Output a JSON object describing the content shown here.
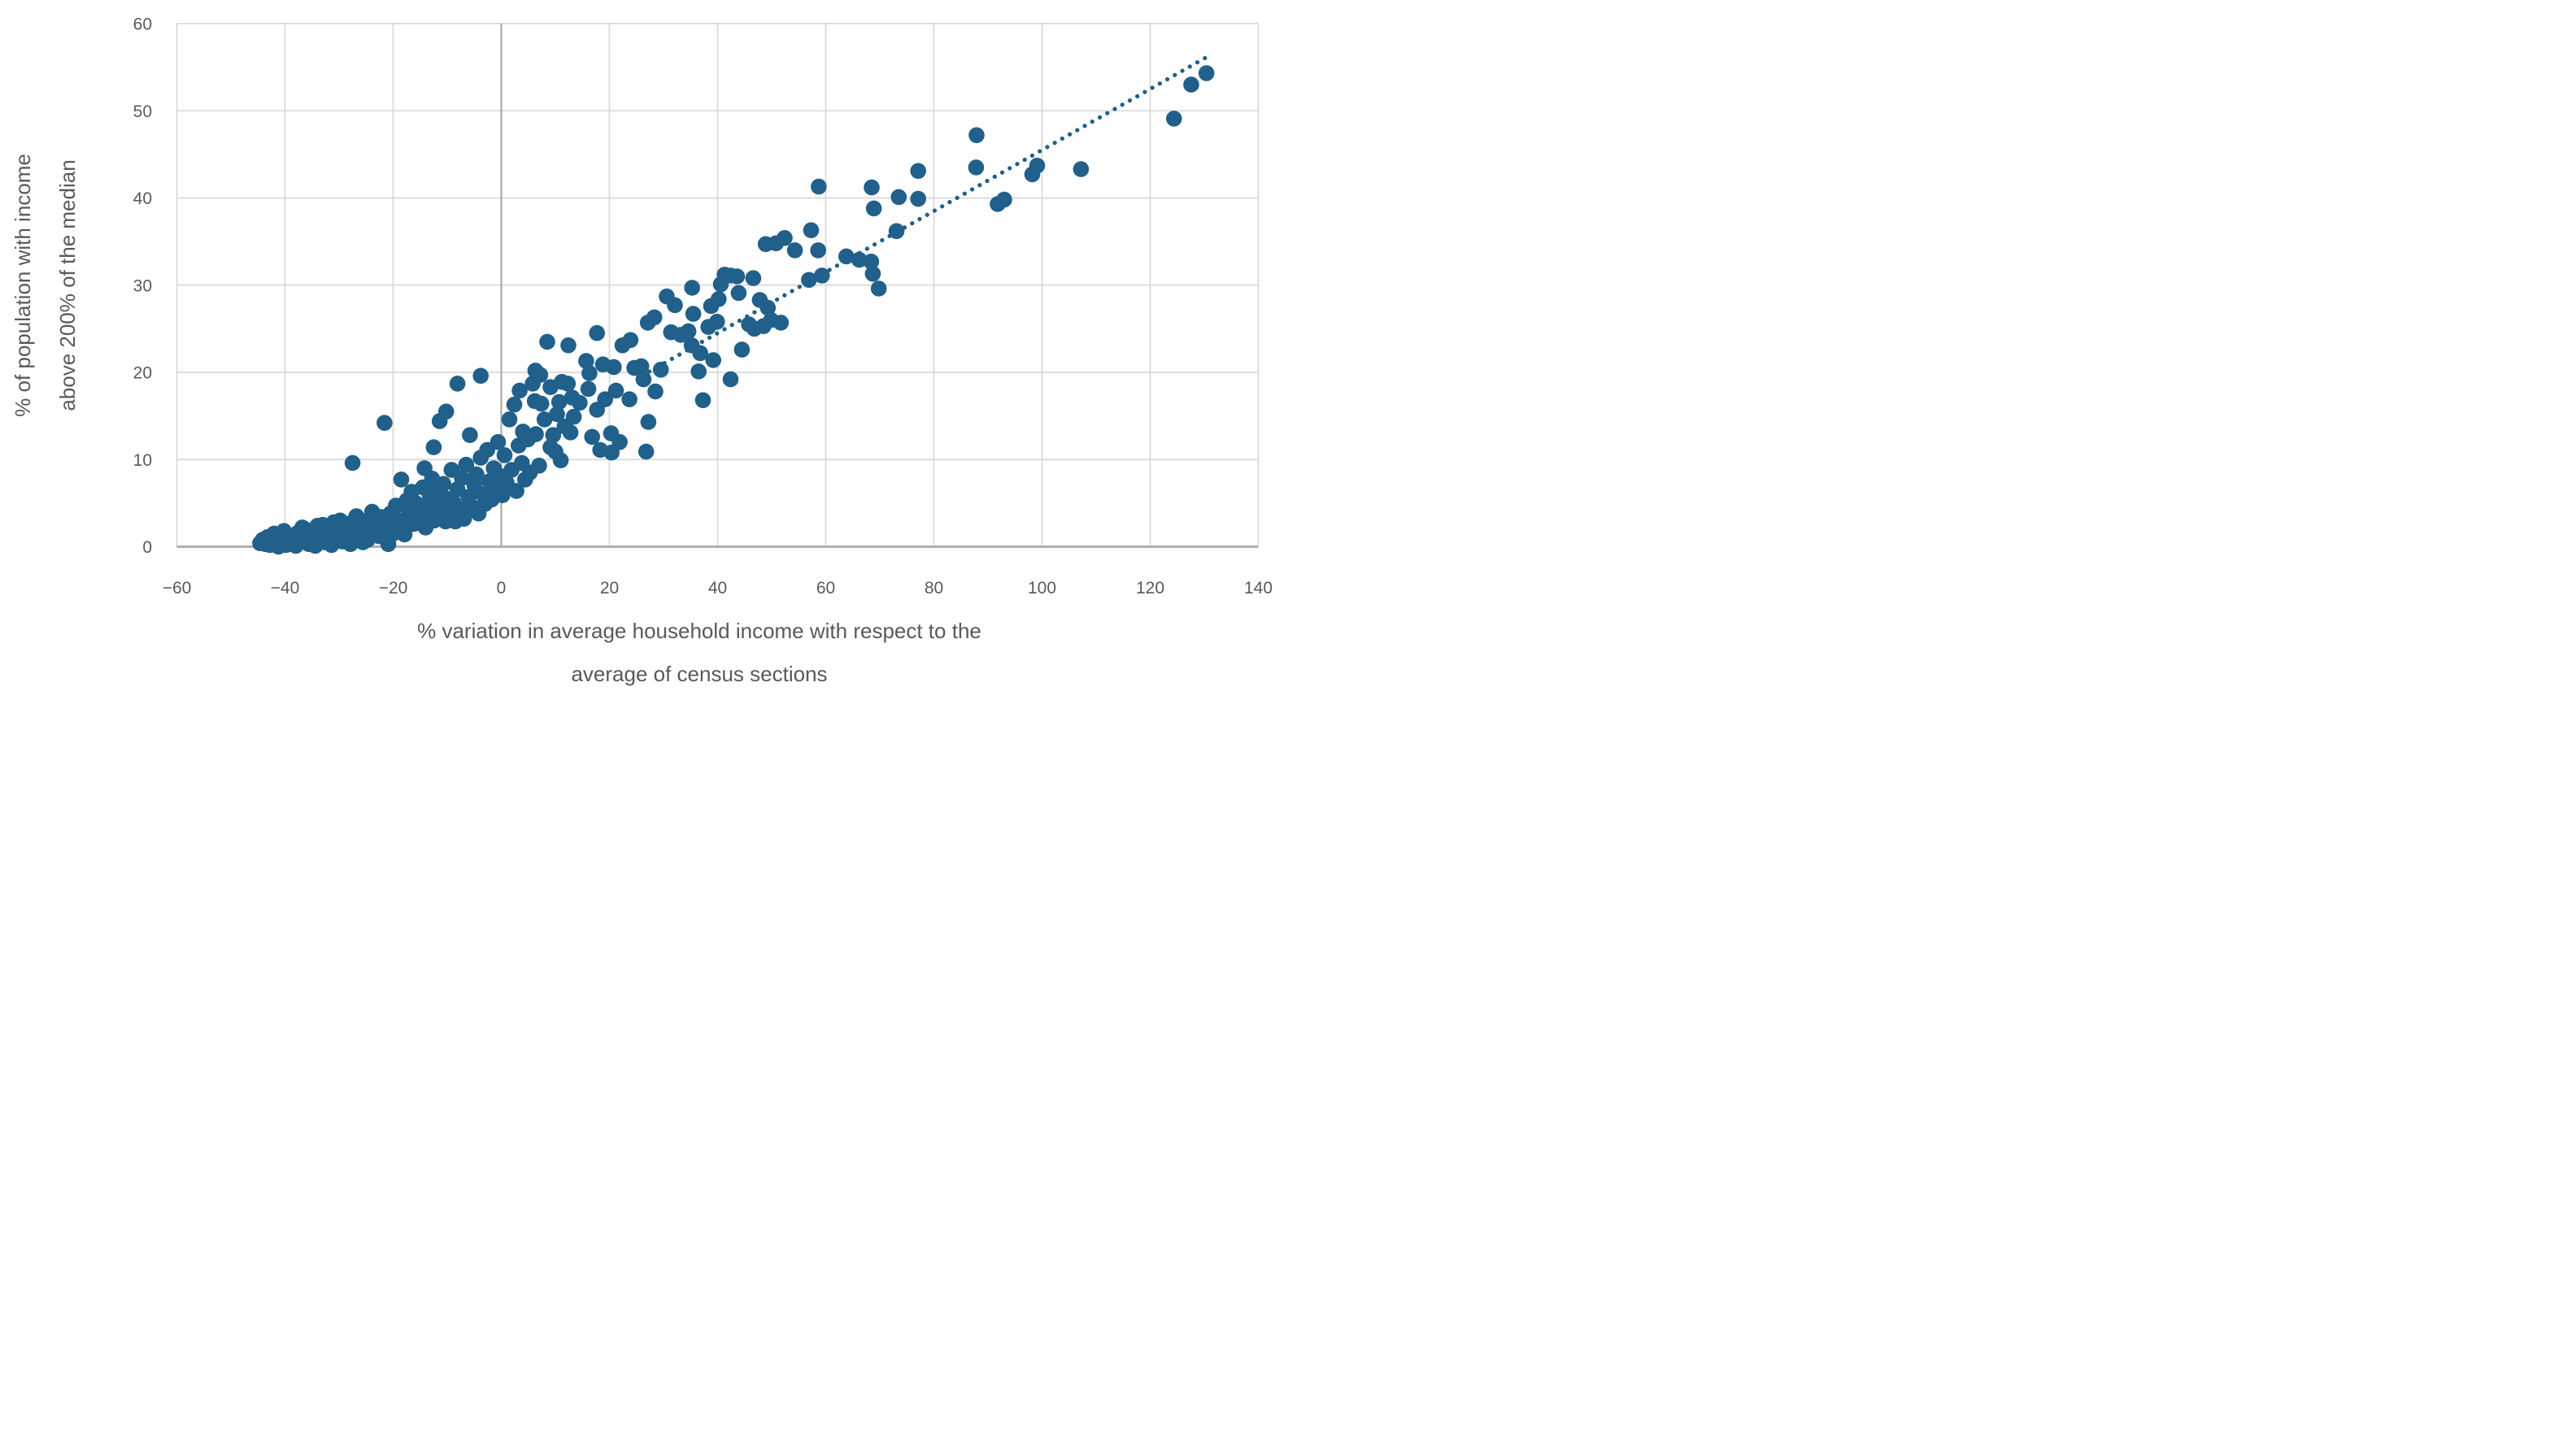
{
  "chart_data": {
    "type": "scatter",
    "title": "",
    "xlabel": "% variation in average household income with respect to the average of census sections",
    "xlabel_line1": "% variation in average household income with respect to the",
    "xlabel_line2": "average of census sections",
    "ylabel": "% of population with income above 200% of the median",
    "ylabel_line1": "% of population with income",
    "ylabel_line2": "above 200% of the median",
    "xlim": [
      -60,
      140
    ],
    "ylim": [
      0,
      60
    ],
    "grid": true,
    "legend": "none",
    "point_color": "#20608a",
    "grid_color": "#d9d9d9",
    "axis_color": "#b0b0b0",
    "label_color": "#595959",
    "x_ticks": [
      {
        "v": -60,
        "label": "−60"
      },
      {
        "v": -40,
        "label": "−40"
      },
      {
        "v": -20,
        "label": "−20"
      },
      {
        "v": 0,
        "label": "0"
      },
      {
        "v": 20,
        "label": "20"
      },
      {
        "v": 40,
        "label": "40"
      },
      {
        "v": 60,
        "label": "60"
      },
      {
        "v": 80,
        "label": "80"
      },
      {
        "v": 100,
        "label": "100"
      },
      {
        "v": 120,
        "label": "120"
      },
      {
        "v": 140,
        "label": "140"
      }
    ],
    "y_ticks": [
      {
        "v": 0,
        "label": "0"
      },
      {
        "v": 10,
        "label": "10"
      },
      {
        "v": 20,
        "label": "20"
      },
      {
        "v": 30,
        "label": "30"
      },
      {
        "v": 40,
        "label": "40"
      },
      {
        "v": 50,
        "label": "50"
      },
      {
        "v": 60,
        "label": "60"
      }
    ],
    "trendline": {
      "style": "dotted",
      "x1": 26,
      "y1": 19.6,
      "x2": 130.3,
      "y2": 56.1
    },
    "points": [
      [
        -44.6,
        0.4
      ],
      [
        -44.1,
        0.8
      ],
      [
        -43.6,
        0.3
      ],
      [
        -43.2,
        1.1
      ],
      [
        -42.8,
        0.2
      ],
      [
        -42.3,
        0.7
      ],
      [
        -42.0,
        1.5
      ],
      [
        -41.6,
        0.3
      ],
      [
        -41.2,
        0.0
      ],
      [
        -40.9,
        1.0
      ],
      [
        -40.5,
        0.5
      ],
      [
        -40.2,
        1.8
      ],
      [
        -39.8,
        0.2
      ],
      [
        -39.4,
        0.9
      ],
      [
        -39.0,
        1.3
      ],
      [
        -38.7,
        1.2
      ],
      [
        -38.3,
        0.4
      ],
      [
        -38.0,
        0.1
      ],
      [
        -37.6,
        1.6
      ],
      [
        -37.2,
        0.7
      ],
      [
        -36.8,
        2.2
      ],
      [
        -36.3,
        2.0
      ],
      [
        -36.0,
        0.9
      ],
      [
        -35.6,
        0.3
      ],
      [
        -35.2,
        1.0
      ],
      [
        -34.8,
        1.7
      ],
      [
        -34.4,
        0.1
      ],
      [
        -34.0,
        2.4
      ],
      [
        -33.6,
        1.1
      ],
      [
        -33.0,
        2.5
      ],
      [
        -32.6,
        0.5
      ],
      [
        -32.2,
        1.9
      ],
      [
        -31.8,
        0.8
      ],
      [
        -31.4,
        0.2
      ],
      [
        -31.0,
        2.8
      ],
      [
        -30.6,
        1.4
      ],
      [
        -30.2,
        2.2
      ],
      [
        -29.8,
        3.0
      ],
      [
        -29.4,
        0.6
      ],
      [
        -29.0,
        1.3
      ],
      [
        -28.6,
        2.6
      ],
      [
        -28.2,
        0.9
      ],
      [
        -27.9,
        0.3
      ],
      [
        -27.5,
        1.8
      ],
      [
        -27.0,
        3.2
      ],
      [
        -26.8,
        3.5
      ],
      [
        -26.4,
        1.0
      ],
      [
        -26.0,
        2.1
      ],
      [
        -25.6,
        0.5
      ],
      [
        -25.2,
        2.9
      ],
      [
        -24.7,
        0.8
      ],
      [
        -24.3,
        1.6
      ],
      [
        -23.9,
        4.0
      ],
      [
        -23.5,
        2.4
      ],
      [
        -23.0,
        2.8
      ],
      [
        -22.6,
        1.2
      ],
      [
        -22.2,
        3.4
      ],
      [
        -21.7,
        1.7
      ],
      [
        -21.3,
        2.3
      ],
      [
        -20.9,
        0.3
      ],
      [
        -20.5,
        3.8
      ],
      [
        -20.0,
        1.5
      ],
      [
        -27.5,
        9.6
      ],
      [
        -21.6,
        14.2
      ],
      [
        -19.5,
        4.7
      ],
      [
        -19.1,
        2.1
      ],
      [
        -18.7,
        3.0
      ],
      [
        -18.5,
        7.7
      ],
      [
        -18.2,
        1.9
      ],
      [
        -17.9,
        1.4
      ],
      [
        -17.5,
        5.3
      ],
      [
        -17.1,
        3.8
      ],
      [
        -16.6,
        6.3
      ],
      [
        -16.2,
        2.6
      ],
      [
        -15.8,
        5.0
      ],
      [
        -15.4,
        3.2
      ],
      [
        -14.9,
        3.5
      ],
      [
        -14.5,
        6.8
      ],
      [
        -14.2,
        9.0
      ],
      [
        -14.0,
        2.2
      ],
      [
        -13.6,
        4.4
      ],
      [
        -13.2,
        5.8
      ],
      [
        -12.8,
        7.8
      ],
      [
        -12.5,
        11.4
      ],
      [
        -12.4,
        3.0
      ],
      [
        -12.0,
        6.3
      ],
      [
        -11.6,
        4.1
      ],
      [
        -11.4,
        14.4
      ],
      [
        -11.1,
        4.7
      ],
      [
        -10.7,
        7.2
      ],
      [
        -10.3,
        2.9
      ],
      [
        -10.2,
        15.5
      ],
      [
        -10.0,
        5.5
      ],
      [
        -9.6,
        3.5
      ],
      [
        -9.2,
        8.8
      ],
      [
        -8.9,
        5.1
      ],
      [
        -8.5,
        2.9
      ],
      [
        -8.1,
        18.7
      ],
      [
        -8.1,
        6.6
      ],
      [
        -7.7,
        4.3
      ],
      [
        -7.3,
        7.9
      ],
      [
        -6.9,
        3.2
      ],
      [
        -6.5,
        9.4
      ],
      [
        -6.1,
        5.7
      ],
      [
        -5.8,
        12.8
      ],
      [
        -5.4,
        4.6
      ],
      [
        -5.0,
        7.1
      ],
      [
        -4.6,
        8.3
      ],
      [
        -4.2,
        3.8
      ],
      [
        -3.8,
        19.6
      ],
      [
        -3.8,
        10.2
      ],
      [
        -3.4,
        6.0
      ],
      [
        -3.0,
        4.9
      ],
      [
        -2.6,
        11.1
      ],
      [
        -2.2,
        7.5
      ],
      [
        -1.8,
        5.4
      ],
      [
        -1.4,
        9.0
      ],
      [
        -1.0,
        6.8
      ],
      [
        -0.6,
        12.0
      ],
      [
        -0.2,
        8.1
      ],
      [
        0.2,
        5.9
      ],
      [
        0.6,
        10.5
      ],
      [
        1.0,
        7.3
      ],
      [
        1.5,
        14.6
      ],
      [
        1.9,
        8.8
      ],
      [
        2.4,
        16.3
      ],
      [
        2.8,
        6.4
      ],
      [
        3.2,
        11.6
      ],
      [
        3.4,
        17.9
      ],
      [
        3.8,
        9.6
      ],
      [
        4.0,
        13.2
      ],
      [
        4.4,
        7.7
      ],
      [
        4.9,
        12.3
      ],
      [
        5.3,
        8.5
      ],
      [
        5.8,
        18.7
      ],
      [
        6.2,
        16.7
      ],
      [
        6.3,
        20.2
      ],
      [
        6.4,
        12.9
      ],
      [
        7.0,
        9.3
      ],
      [
        7.2,
        19.7
      ],
      [
        7.4,
        16.4
      ],
      [
        8.0,
        14.6
      ],
      [
        8.5,
        23.5
      ],
      [
        9.1,
        18.3
      ],
      [
        9.1,
        11.4
      ],
      [
        9.6,
        12.8
      ],
      [
        10.0,
        10.9
      ],
      [
        10.3,
        15.2
      ],
      [
        10.7,
        16.6
      ],
      [
        11.0,
        9.9
      ],
      [
        11.2,
        18.9
      ],
      [
        11.7,
        13.8
      ],
      [
        12.3,
        18.7
      ],
      [
        12.4,
        23.1
      ],
      [
        12.8,
        13.1
      ],
      [
        13.1,
        17.1
      ],
      [
        13.4,
        14.9
      ],
      [
        14.5,
        16.5
      ],
      [
        15.7,
        21.3
      ],
      [
        16.1,
        18.1
      ],
      [
        16.3,
        19.9
      ],
      [
        16.8,
        12.6
      ],
      [
        17.7,
        24.5
      ],
      [
        17.7,
        15.7
      ],
      [
        18.3,
        11.1
      ],
      [
        18.8,
        20.9
      ],
      [
        19.2,
        16.9
      ],
      [
        20.4,
        10.8
      ],
      [
        20.3,
        13.0
      ],
      [
        20.8,
        20.6
      ],
      [
        21.2,
        17.9
      ],
      [
        21.9,
        12.0
      ],
      [
        22.4,
        23.1
      ],
      [
        23.7,
        16.9
      ],
      [
        23.9,
        23.7
      ],
      [
        24.6,
        20.5
      ],
      [
        25.9,
        20.7
      ],
      [
        26.3,
        19.2
      ],
      [
        26.8,
        10.9
      ],
      [
        27.1,
        25.7
      ],
      [
        27.2,
        14.3
      ],
      [
        28.3,
        26.3
      ],
      [
        28.5,
        17.8
      ],
      [
        29.5,
        20.3
      ],
      [
        30.6,
        28.7
      ],
      [
        31.4,
        24.6
      ],
      [
        32.1,
        27.7
      ],
      [
        33.2,
        24.3
      ],
      [
        34.6,
        24.7
      ],
      [
        35.2,
        23.1
      ],
      [
        35.3,
        29.7
      ],
      [
        35.5,
        26.7
      ],
      [
        36.5,
        20.1
      ],
      [
        36.8,
        22.2
      ],
      [
        37.3,
        16.8
      ],
      [
        38.3,
        25.2
      ],
      [
        38.8,
        27.6
      ],
      [
        39.2,
        21.4
      ],
      [
        39.9,
        25.8
      ],
      [
        40.2,
        28.4
      ],
      [
        40.6,
        30.1
      ],
      [
        41.3,
        31.2
      ],
      [
        42.4,
        31.1
      ],
      [
        42.4,
        19.2
      ],
      [
        43.6,
        31.0
      ],
      [
        43.9,
        29.1
      ],
      [
        44.5,
        22.6
      ],
      [
        45.8,
        25.5
      ],
      [
        46.6,
        30.8
      ],
      [
        46.8,
        25.0
      ],
      [
        47.8,
        28.3
      ],
      [
        48.5,
        25.3
      ],
      [
        49.3,
        27.4
      ],
      [
        49.9,
        26.0
      ],
      [
        51.7,
        25.7
      ],
      [
        48.9,
        34.7
      ],
      [
        50.8,
        34.8
      ],
      [
        52.4,
        35.4
      ],
      [
        54.3,
        34.0
      ],
      [
        56.9,
        30.6
      ],
      [
        57.3,
        36.3
      ],
      [
        58.6,
        34.0
      ],
      [
        58.7,
        41.3
      ],
      [
        59.3,
        31.1
      ],
      [
        63.8,
        33.3
      ],
      [
        66.2,
        32.9
      ],
      [
        68.4,
        32.7
      ],
      [
        68.7,
        31.3
      ],
      [
        68.5,
        41.2
      ],
      [
        68.9,
        38.8
      ],
      [
        69.8,
        29.6
      ],
      [
        73.1,
        36.2
      ],
      [
        73.5,
        40.1
      ],
      [
        77.1,
        43.1
      ],
      [
        77.1,
        39.9
      ],
      [
        87.9,
        47.2
      ],
      [
        87.8,
        43.5
      ],
      [
        91.8,
        39.3
      ],
      [
        93.0,
        39.8
      ],
      [
        98.2,
        42.7
      ],
      [
        99.1,
        43.7
      ],
      [
        107.2,
        43.3
      ],
      [
        124.4,
        49.1
      ],
      [
        127.6,
        53.0
      ],
      [
        130.4,
        54.3
      ]
    ]
  }
}
